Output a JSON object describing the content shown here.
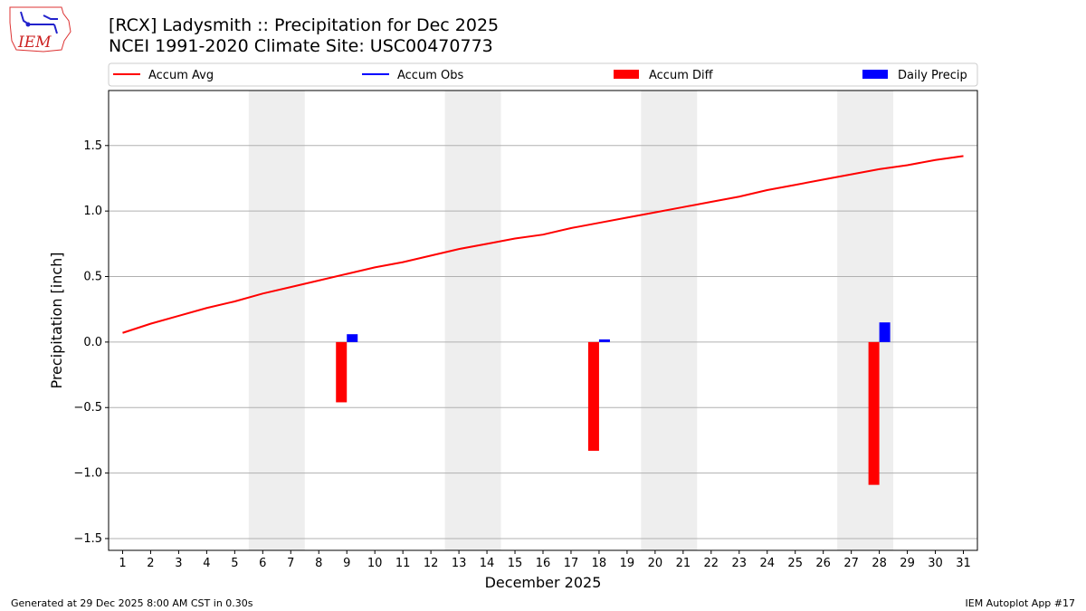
{
  "title_line1": "[RCX] Ladysmith :: Precipitation for Dec 2025",
  "title_line2": "NCEI 1991-2020 Climate Site: USC00470773",
  "logo_text": "IEM",
  "footer_left": "Generated at 29 Dec 2025 8:00 AM CST in 0.30s",
  "footer_right": "IEM Autoplot App #17",
  "chart_data": {
    "type": "bar",
    "xlabel": "December 2025",
    "ylabel": "Precipitation [inch]",
    "ylim": [
      -1.59,
      1.92
    ],
    "xlim": [
      0.5,
      31.5
    ],
    "yticks": [
      -1.5,
      -1.0,
      -0.5,
      0.0,
      0.5,
      1.0,
      1.5
    ],
    "ytick_labels": [
      "−1.5",
      "−1.0",
      "−0.5",
      "0.0",
      "0.5",
      "1.0",
      "1.5"
    ],
    "grid": "horizontal",
    "legend_placement": "top",
    "weekend_shading": [
      [
        5.5,
        7.5
      ],
      [
        12.5,
        14.5
      ],
      [
        19.5,
        21.5
      ],
      [
        26.5,
        28.5
      ]
    ],
    "days": [
      1,
      2,
      3,
      4,
      5,
      6,
      7,
      8,
      9,
      10,
      11,
      12,
      13,
      14,
      15,
      16,
      17,
      18,
      19,
      20,
      21,
      22,
      23,
      24,
      25,
      26,
      27,
      28,
      29,
      30,
      31
    ],
    "series": [
      {
        "name": "Accum Avg",
        "type": "line",
        "color": "#ff0000",
        "values": [
          0.07,
          0.14,
          0.2,
          0.26,
          0.31,
          0.37,
          0.42,
          0.47,
          0.52,
          0.57,
          0.61,
          0.66,
          0.71,
          0.75,
          0.79,
          0.82,
          0.87,
          0.91,
          0.95,
          0.99,
          1.03,
          1.07,
          1.11,
          1.16,
          1.2,
          1.24,
          1.28,
          1.32,
          1.35,
          1.39,
          1.42
        ]
      },
      {
        "name": "Accum Obs",
        "type": "line",
        "color": "#0000ff",
        "values": []
      },
      {
        "name": "Accum Diff",
        "type": "bar",
        "color": "#ff0000",
        "points": [
          {
            "day": 9,
            "value": -0.46
          },
          {
            "day": 18,
            "value": -0.83
          },
          {
            "day": 28,
            "value": -1.09
          }
        ]
      },
      {
        "name": "Daily Precip",
        "type": "bar",
        "color": "#0000ff",
        "points": [
          {
            "day": 9,
            "value": 0.06
          },
          {
            "day": 18,
            "value": 0.02
          },
          {
            "day": 28,
            "value": 0.15
          }
        ]
      }
    ]
  }
}
